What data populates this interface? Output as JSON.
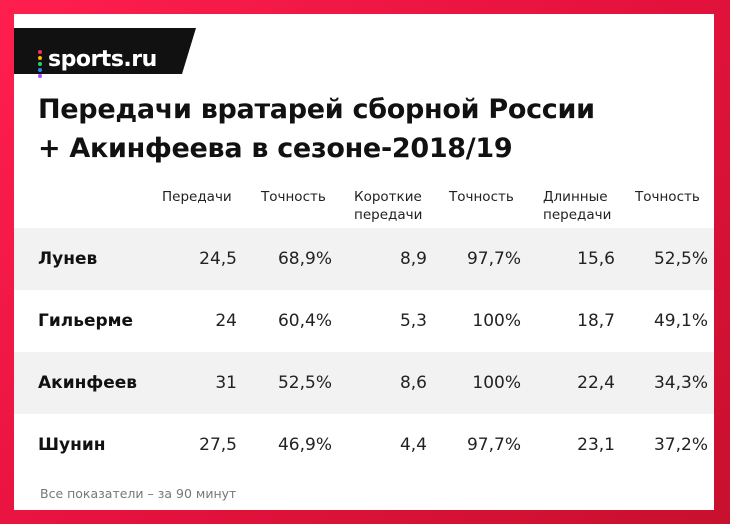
{
  "brand": {
    "logo_text": "sports.ru",
    "dot_colors": [
      "#ff2a55",
      "#ffb400",
      "#2ad16b",
      "#2a8cff",
      "#b04cff"
    ]
  },
  "title": {
    "line1": "Передачи вратарей сборной России",
    "line2": "+ Акинфеева в сезоне-2018/19"
  },
  "footnote": "Все показатели – за 90 минут",
  "chart_data": {
    "type": "table",
    "title": "Передачи вратарей сборной России + Акинфеева в сезоне-2018/19",
    "columns": [
      "Передачи",
      "Точность",
      "Короткие передачи",
      "Точность",
      "Длинные передачи",
      "Точность"
    ],
    "columns_display": [
      [
        "Передачи"
      ],
      [
        "Точность"
      ],
      [
        "Короткие",
        "передачи"
      ],
      [
        "Точность"
      ],
      [
        "Длинные",
        "передачи"
      ],
      [
        "Точность"
      ]
    ],
    "rows": [
      {
        "name": "Лунев",
        "values": [
          "24,5",
          "68,9%",
          "8,9",
          "97,7%",
          "15,6",
          "52,5%"
        ]
      },
      {
        "name": "Гильерме",
        "values": [
          "24",
          "60,4%",
          "5,3",
          "100%",
          "18,7",
          "49,1%"
        ]
      },
      {
        "name": "Акинфеев",
        "values": [
          "31",
          "52,5%",
          "8,6",
          "100%",
          "22,4",
          "34,3%"
        ]
      },
      {
        "name": "Шунин",
        "values": [
          "27,5",
          "46,9%",
          "4,4",
          "97,7%",
          "23,1",
          "37,2%"
        ]
      }
    ],
    "row_shading": "alternating, first row shaded",
    "shade_color": "#f2f2f2",
    "accent_color": "#e8133f"
  }
}
